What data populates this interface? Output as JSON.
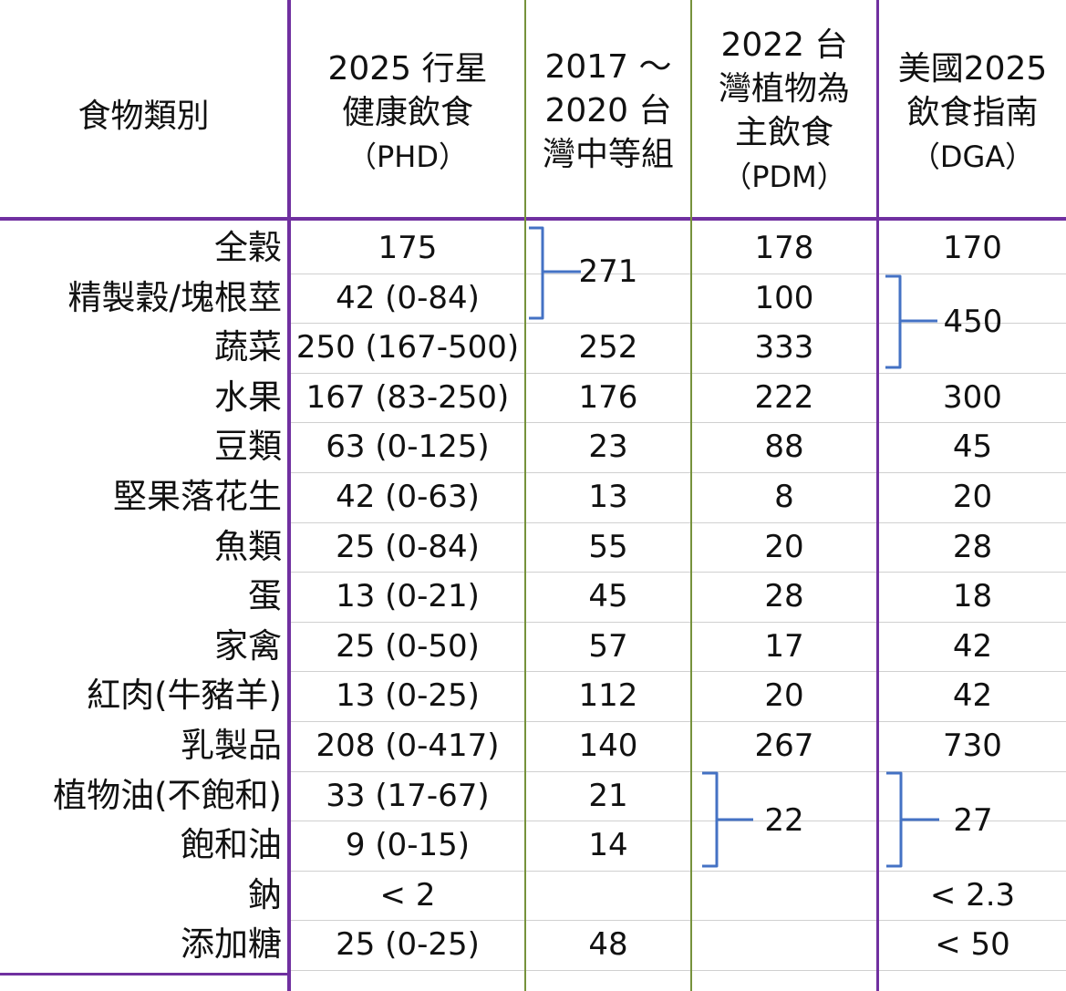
{
  "headers": {
    "category": [
      "食物類別"
    ],
    "phd": [
      "2025 行星",
      "健康飲食",
      "（PHD）"
    ],
    "tw_mid": [
      "2017 ～",
      "2020 台",
      "灣中等組"
    ],
    "pdm": [
      "2022 台",
      "灣植物為",
      "主飲食",
      "（PDM）"
    ],
    "dga": [
      "美國2025",
      "飲食指南",
      "（DGA）"
    ]
  },
  "rows": [
    {
      "category": "全穀",
      "phd": "175",
      "tw_mid": "",
      "pdm": "178",
      "dga": "170"
    },
    {
      "category": "精製穀/塊根莖",
      "phd": "42 (0-84)",
      "tw_mid": "",
      "pdm": "100",
      "dga": ""
    },
    {
      "category": "蔬菜",
      "phd": "250 (167-500)",
      "tw_mid": "252",
      "pdm": "333",
      "dga": ""
    },
    {
      "category": "水果",
      "phd": "167  (83-250)",
      "tw_mid": "176",
      "pdm": "222",
      "dga": "300"
    },
    {
      "category": "豆類",
      "phd": "63 (0-125)",
      "tw_mid": "23",
      "pdm": "88",
      "dga": "45"
    },
    {
      "category": "堅果落花生",
      "phd": "42 (0-63)",
      "tw_mid": "13",
      "pdm": "8",
      "dga": "20"
    },
    {
      "category": "魚類",
      "phd": "25 (0-84)",
      "tw_mid": "55",
      "pdm": "20",
      "dga": "28"
    },
    {
      "category": "蛋",
      "phd": "13 (0-21)",
      "tw_mid": "45",
      "pdm": "28",
      "dga": "18"
    },
    {
      "category": "家禽",
      "phd": "25 (0-50)",
      "tw_mid": "57",
      "pdm": "17",
      "dga": "42"
    },
    {
      "category": "紅肉(牛豬羊)",
      "phd": "13 (0-25)",
      "tw_mid": "112",
      "pdm": "20",
      "dga": "42"
    },
    {
      "category": "乳製品",
      "phd": "208 (0-417)",
      "tw_mid": "140",
      "pdm": "267",
      "dga": "730"
    },
    {
      "category": "植物油(不飽和)",
      "phd": "33 (17-67)",
      "tw_mid": "21",
      "pdm": "",
      "dga": ""
    },
    {
      "category": "飽和油",
      "phd": "9 (0-15)",
      "tw_mid": "14",
      "pdm": "",
      "dga": ""
    },
    {
      "category": "鈉",
      "phd": "< 2",
      "tw_mid": "",
      "pdm": "",
      "dga": "< 2.3"
    },
    {
      "category": "添加糖",
      "phd": "25 (0-25)",
      "tw_mid": "48",
      "pdm": "",
      "dga": "< 50"
    }
  ],
  "merged": {
    "tw_mid_grains": "271",
    "dga_grains_veg": "450",
    "pdm_oils": "22",
    "dga_oils": "27"
  },
  "colors": {
    "purple_border": "#7030a0",
    "green_border": "#76923c",
    "bracket_blue": "#4472c4",
    "grid_gray": "#d0d0d0"
  }
}
